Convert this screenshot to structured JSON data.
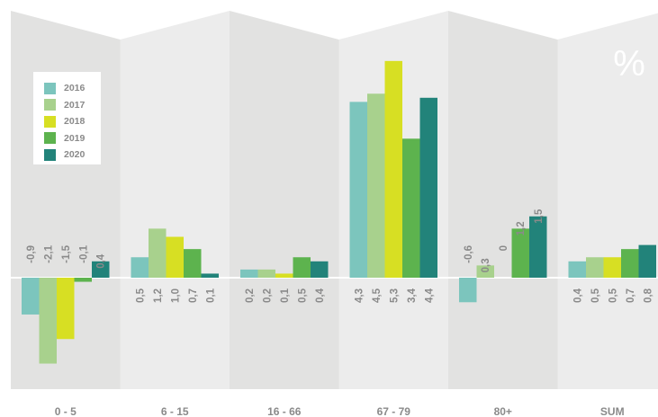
{
  "unit_label": "%",
  "colors": {
    "panel_dark": "#e2e2e1",
    "panel_light": "#ececec",
    "baseline": "#ffffff",
    "text": "#8a8a8a"
  },
  "chart_data": {
    "type": "bar",
    "categories": [
      "0 - 5",
      "6 - 15",
      "16 - 66",
      "67 - 79",
      "80+",
      "SUM"
    ],
    "series": [
      {
        "name": "2016",
        "color": "#7cc5bd",
        "values": [
          -0.9,
          0.5,
          0.2,
          4.3,
          -0.6,
          0.4
        ],
        "labels": [
          "-0,9",
          "0,5",
          "0,2",
          "4,3",
          "-0,6",
          "0,4"
        ]
      },
      {
        "name": "2017",
        "color": "#a8d18d",
        "values": [
          -2.1,
          1.2,
          0.2,
          4.5,
          0.3,
          0.5
        ],
        "labels": [
          "-2,1",
          "1,2",
          "0,2",
          "4,5",
          "0,3",
          "0,5"
        ]
      },
      {
        "name": "2018",
        "color": "#d7df23",
        "values": [
          -1.5,
          1.0,
          0.1,
          5.3,
          0.0,
          0.5
        ],
        "labels": [
          "-1,5",
          "1,0",
          "0,1",
          "5,3",
          "0",
          "0,5"
        ]
      },
      {
        "name": "2019",
        "color": "#5db34e",
        "values": [
          -0.1,
          0.7,
          0.5,
          3.4,
          1.2,
          0.7
        ],
        "labels": [
          "-0,1",
          "0,7",
          "0,5",
          "3,4",
          "1,2",
          "0,7"
        ]
      },
      {
        "name": "2020",
        "color": "#22837a",
        "values": [
          0.4,
          0.1,
          0.4,
          4.4,
          1.5,
          0.8
        ],
        "labels": [
          "0,4",
          "0,1",
          "0,4",
          "4,4",
          "1,5",
          "0,8"
        ]
      }
    ],
    "legend_position": "top-left",
    "grid": false
  }
}
